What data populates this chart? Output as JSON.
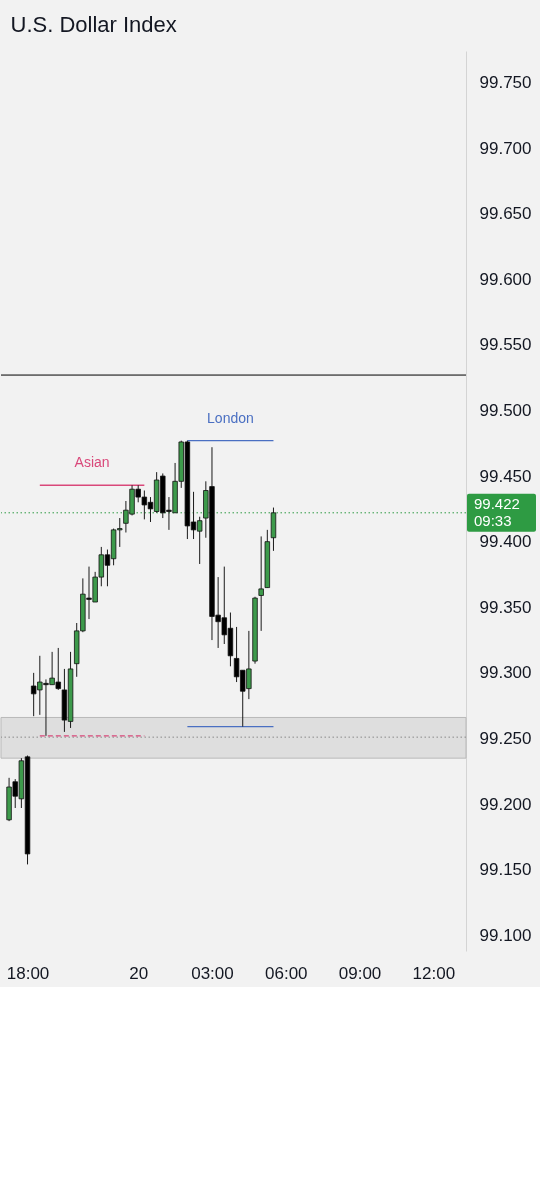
{
  "chart_data": {
    "type": "candlestick",
    "title": "U.S. Dollar Index",
    "categories": [
      null,
      null,
      null,
      "18:00",
      null,
      null,
      null,
      null,
      null,
      null,
      null,
      null,
      null,
      null,
      null,
      null,
      null,
      null,
      null,
      null,
      null,
      "20",
      null,
      null,
      null,
      null,
      null,
      null,
      null,
      null,
      null,
      null,
      null,
      "03:00",
      null,
      null,
      null,
      null,
      null,
      null,
      null,
      null,
      null,
      null,
      null,
      "06:00",
      null,
      null,
      null,
      null,
      null,
      null,
      null,
      null,
      null,
      null,
      null,
      "09:00",
      null,
      null,
      null,
      null,
      null,
      null,
      null,
      null,
      null,
      null,
      null,
      "12:00",
      null,
      null,
      null,
      null
    ],
    "ohlc": [
      [
        99.188,
        99.22,
        99.187,
        99.213
      ],
      [
        99.217,
        99.219,
        99.197,
        99.206
      ],
      [
        99.204,
        99.235,
        99.197,
        99.233
      ],
      [
        99.236,
        99.237,
        99.154,
        99.162
      ],
      [
        99.29,
        99.3,
        99.267,
        99.284
      ],
      [
        99.287,
        99.313,
        99.268,
        99.293
      ],
      [
        99.292,
        99.295,
        99.252,
        99.291
      ],
      [
        99.291,
        99.316,
        99.291,
        99.296
      ],
      [
        99.293,
        99.319,
        99.287,
        99.288
      ],
      [
        99.287,
        99.303,
        99.255,
        99.264
      ],
      [
        99.263,
        99.316,
        99.258,
        99.303
      ],
      [
        99.307,
        99.338,
        99.297,
        99.332
      ],
      [
        99.332,
        99.372,
        99.331,
        99.36
      ],
      [
        99.357,
        99.381,
        99.341,
        99.356
      ],
      [
        99.354,
        99.377,
        99.354,
        99.373
      ],
      [
        99.373,
        99.396,
        99.366,
        99.39
      ],
      [
        99.39,
        99.394,
        99.366,
        99.382
      ],
      [
        99.387,
        99.41,
        99.382,
        99.409
      ],
      [
        99.409,
        99.418,
        99.396,
        99.41
      ],
      [
        99.414,
        99.431,
        99.407,
        99.424
      ],
      [
        99.421,
        99.443,
        99.42,
        99.44
      ],
      [
        99.44,
        99.443,
        99.43,
        99.434
      ],
      [
        99.434,
        99.439,
        99.417,
        99.428
      ],
      [
        99.43,
        99.434,
        99.415,
        99.425
      ],
      [
        99.423,
        99.453,
        99.422,
        99.447
      ],
      [
        99.45,
        99.452,
        99.418,
        99.422
      ],
      [
        99.424,
        99.434,
        99.409,
        99.423
      ],
      [
        99.422,
        99.46,
        99.422,
        99.446
      ],
      [
        99.446,
        99.477,
        99.441,
        99.476
      ],
      [
        99.476,
        99.477,
        99.402,
        99.412
      ],
      [
        99.415,
        99.438,
        99.402,
        99.409
      ],
      [
        99.408,
        99.419,
        99.383,
        99.416
      ],
      [
        99.418,
        99.446,
        99.403,
        99.439
      ],
      [
        99.442,
        99.472,
        99.325,
        99.343
      ],
      [
        99.344,
        99.373,
        99.319,
        99.339
      ],
      [
        99.342,
        99.381,
        99.322,
        99.329
      ],
      [
        99.334,
        99.346,
        99.305,
        99.313
      ],
      [
        99.311,
        99.335,
        99.293,
        99.297
      ],
      [
        99.302,
        99.302,
        99.259,
        99.286
      ],
      [
        99.288,
        99.332,
        99.28,
        99.303
      ],
      [
        99.309,
        99.358,
        99.307,
        99.357
      ],
      [
        99.359,
        99.404,
        99.332,
        99.364
      ],
      [
        99.365,
        99.409,
        99.365,
        99.4
      ],
      [
        99.403,
        99.426,
        99.393,
        99.422
      ],
      null,
      null,
      null,
      null,
      null,
      null,
      null,
      null,
      null,
      null,
      null,
      null,
      null,
      null,
      null,
      null,
      null,
      null,
      null,
      null,
      null,
      null,
      null,
      null,
      null,
      null,
      null,
      null,
      null,
      null
    ],
    "colors": [
      "#3d9a4b",
      "#000000",
      "#3d9a4b",
      "#000000",
      "#000000",
      "#3d9a4b",
      "#000000",
      "#3d9a4b",
      "#000000",
      "#000000",
      "#3d9a4b",
      "#3d9a4b",
      "#3d9a4b",
      "#000000",
      "#3d9a4b",
      "#3d9a4b",
      "#000000",
      "#3d9a4b",
      "#3d9a4b",
      "#3d9a4b",
      "#3d9a4b",
      "#000000",
      "#000000",
      "#000000",
      "#3d9a4b",
      "#000000",
      "#000000",
      "#3d9a4b",
      "#3d9a4b",
      "#000000",
      "#000000",
      "#3d9a4b",
      "#3d9a4b",
      "#000000",
      "#000000",
      "#000000",
      "#000000",
      "#000000",
      "#000000",
      "#3d9a4b",
      "#3d9a4b",
      "#3d9a4b",
      "#3d9a4b",
      "#3d9a4b",
      null,
      null,
      null,
      null,
      null,
      null,
      null,
      null,
      null,
      null,
      null,
      null,
      null,
      null,
      null,
      null,
      null,
      null,
      null,
      null,
      null,
      null,
      null,
      null,
      null,
      null,
      null,
      null,
      null,
      null
    ],
    "series": [
      {
        "name": "Asian",
        "type": "line",
        "color": "#d9487a",
        "values": [
          null,
          null,
          null,
          null,
          null,
          99.443,
          99.443,
          99.443,
          99.443,
          99.443,
          99.443,
          99.443,
          99.443,
          99.443,
          99.443,
          99.443,
          99.443,
          99.443,
          99.443,
          99.443,
          99.443,
          99.443,
          99.443,
          null,
          null,
          null,
          null,
          null,
          null,
          null,
          null,
          null,
          null,
          null,
          null,
          null,
          null,
          null,
          null,
          null,
          null,
          null,
          null,
          null,
          null,
          null,
          null,
          null,
          null,
          null,
          null,
          null,
          null,
          null,
          null,
          null,
          null,
          null,
          null,
          null,
          null,
          null,
          null,
          null,
          null,
          null,
          null,
          null,
          null,
          null,
          null,
          null,
          null,
          null
        ]
      },
      {
        "type": "line",
        "color": "#d9487a",
        "line_style": "dashed",
        "values": [
          null,
          null,
          null,
          null,
          null,
          99.252,
          99.252,
          99.252,
          99.252,
          99.252,
          99.252,
          99.252,
          99.252,
          99.252,
          99.252,
          99.252,
          99.252,
          99.252,
          99.252,
          99.252,
          99.252,
          99.252,
          99.252,
          null,
          null,
          null,
          null,
          null,
          null,
          null,
          null,
          null,
          null,
          null,
          null,
          null,
          null,
          null,
          null,
          null,
          null,
          null,
          null,
          null,
          null,
          null,
          null,
          null,
          null,
          null,
          null,
          null,
          null,
          null,
          null,
          null,
          null,
          null,
          null,
          null,
          null,
          null,
          null,
          null,
          null,
          null,
          null,
          null,
          null,
          null,
          null,
          null,
          null,
          null
        ]
      },
      {
        "name": "London",
        "type": "line",
        "color": "#4a6fc2",
        "values": [
          null,
          null,
          null,
          null,
          null,
          null,
          null,
          null,
          null,
          null,
          null,
          null,
          null,
          null,
          null,
          null,
          null,
          null,
          null,
          null,
          null,
          null,
          null,
          null,
          null,
          null,
          null,
          null,
          null,
          99.477,
          99.477,
          99.477,
          99.477,
          99.477,
          99.477,
          99.477,
          99.477,
          99.477,
          99.477,
          99.477,
          99.477,
          99.477,
          99.477,
          99.477,
          null,
          null,
          null,
          null,
          null,
          null,
          null,
          null,
          null,
          null,
          null,
          null,
          null,
          null,
          null,
          null,
          null,
          null,
          null,
          null,
          null,
          null,
          null,
          null,
          null,
          null,
          null,
          null,
          null,
          null
        ]
      },
      {
        "type": "line",
        "color": "#4a6fc2",
        "values": [
          null,
          null,
          null,
          null,
          null,
          null,
          null,
          null,
          null,
          null,
          null,
          null,
          null,
          null,
          null,
          null,
          null,
          null,
          null,
          null,
          null,
          null,
          null,
          null,
          null,
          null,
          null,
          null,
          null,
          99.259,
          99.259,
          99.259,
          99.259,
          99.259,
          99.259,
          99.259,
          99.259,
          99.259,
          99.259,
          99.259,
          99.259,
          99.259,
          99.259,
          99.259,
          null,
          null,
          null,
          null,
          null,
          null,
          null,
          null,
          null,
          null,
          null,
          null,
          null,
          null,
          null,
          null,
          null,
          null,
          null,
          null,
          null,
          null,
          null,
          null,
          null,
          null,
          null,
          null,
          null,
          null
        ]
      }
    ],
    "bands": [
      {
        "axis": "y",
        "from": 99.235,
        "to": 99.266,
        "color": "#dedede"
      }
    ],
    "ref_lines": [
      {
        "axis": "y",
        "value": 99.527,
        "color": "#000000"
      },
      {
        "axis": "y",
        "value": 99.251,
        "color": "#8a8a8a",
        "line_style": "dotted"
      },
      {
        "axis": "y",
        "value": 99.422,
        "label": "99.422 09:33",
        "color": "#2e9b43",
        "line_style": "dotted"
      }
    ],
    "ylim": [
      99.088,
      99.774
    ],
    "yticks": [
      {
        "value": 99.1,
        "label": "99.100"
      },
      {
        "value": 99.15,
        "label": "99.150"
      },
      {
        "value": 99.2,
        "label": "99.200"
      },
      {
        "value": 99.25,
        "label": "99.250"
      },
      {
        "value": 99.3,
        "label": "99.300"
      },
      {
        "value": 99.35,
        "label": "99.350"
      },
      {
        "value": 99.4,
        "label": "99.400"
      },
      {
        "value": 99.45,
        "label": "99.450"
      },
      {
        "value": 99.5,
        "label": "99.500"
      },
      {
        "value": 99.55,
        "label": "99.550"
      },
      {
        "value": 99.6,
        "label": "99.600"
      },
      {
        "value": 99.65,
        "label": "99.650"
      },
      {
        "value": 99.7,
        "label": "99.700"
      },
      {
        "value": 99.75,
        "label": "99.750"
      }
    ]
  }
}
